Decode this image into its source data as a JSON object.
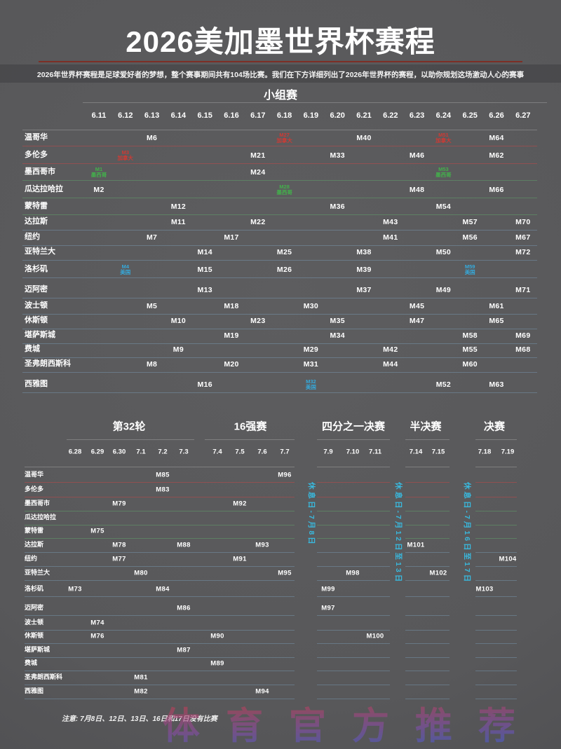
{
  "header": {
    "title": "2026美加墨世界杯赛程",
    "subtitle": "2026年世界杯赛程是足球爱好者的梦想，整个赛事期间共有104场比赛。我们在下方详细列出了2026年世界杯的赛程，以助你规划这场激动人心的赛事"
  },
  "colors": {
    "accent_rule": "#7d2e26",
    "canada": "#cf3a34",
    "mexico": "#43b14b",
    "usa": "#35aadc",
    "rest_label": "#39b9de"
  },
  "group_stage": {
    "title": "小组赛",
    "dates": [
      "6.11",
      "6.12",
      "6.13",
      "6.14",
      "6.15",
      "6.16",
      "6.17",
      "6.18",
      "6.19",
      "6.20",
      "6.21",
      "6.22",
      "6.23",
      "6.24",
      "6.25",
      "6.26",
      "6.27"
    ],
    "rows": [
      {
        "city": "温哥华",
        "country": "CA",
        "matches": [
          {
            "m": "M6",
            "date": "6.13"
          },
          {
            "m": "M27",
            "date": "6.18",
            "tag": "加拿大",
            "color": "canada"
          },
          {
            "m": "M40",
            "date": "6.21"
          },
          {
            "m": "M51",
            "date": "6.24",
            "tag": "加拿大",
            "color": "canada"
          },
          {
            "m": "M64",
            "date": "6.26"
          }
        ]
      },
      {
        "city": "多伦多",
        "country": "CA",
        "matches": [
          {
            "m": "M3",
            "date": "6.12",
            "tag": "加拿大",
            "color": "canada"
          },
          {
            "m": "M21",
            "date": "6.17"
          },
          {
            "m": "M33",
            "date": "6.20"
          },
          {
            "m": "M46",
            "date": "6.23"
          },
          {
            "m": "M62",
            "date": "6.26"
          }
        ]
      },
      {
        "city": "墨西哥市",
        "country": "MX",
        "matches": [
          {
            "m": "M1",
            "date": "6.11",
            "tag": "墨西哥",
            "color": "mexico"
          },
          {
            "m": "M24",
            "date": "6.17"
          },
          {
            "m": "M53",
            "date": "6.24",
            "tag": "墨西哥",
            "color": "mexico"
          }
        ]
      },
      {
        "city": "瓜达拉哈拉",
        "country": "MX",
        "matches": [
          {
            "m": "M2",
            "date": "6.11"
          },
          {
            "m": "M28",
            "date": "6.18",
            "tag": "墨西哥",
            "color": "mexico"
          },
          {
            "m": "M48",
            "date": "6.23"
          },
          {
            "m": "M66",
            "date": "6.26"
          }
        ]
      },
      {
        "city": "蒙特雷",
        "country": "MX",
        "matches": [
          {
            "m": "M12",
            "date": "6.14"
          },
          {
            "m": "M36",
            "date": "6.20"
          },
          {
            "m": "M54",
            "date": "6.24"
          }
        ]
      },
      {
        "city": "达拉斯",
        "country": "US",
        "matches": [
          {
            "m": "M11",
            "date": "6.14"
          },
          {
            "m": "M22",
            "date": "6.17"
          },
          {
            "m": "M43",
            "date": "6.22"
          },
          {
            "m": "M57",
            "date": "6.25"
          },
          {
            "m": "M70",
            "date": "6.27"
          }
        ]
      },
      {
        "city": "纽约",
        "country": "US",
        "matches": [
          {
            "m": "M7",
            "date": "6.13"
          },
          {
            "m": "M17",
            "date": "6.16"
          },
          {
            "m": "M41",
            "date": "6.22"
          },
          {
            "m": "M56",
            "date": "6.25"
          },
          {
            "m": "M67",
            "date": "6.27"
          }
        ]
      },
      {
        "city": "亚特兰大",
        "country": "US",
        "matches": [
          {
            "m": "M14",
            "date": "6.15"
          },
          {
            "m": "M25",
            "date": "6.18"
          },
          {
            "m": "M38",
            "date": "6.21"
          },
          {
            "m": "M50",
            "date": "6.24"
          },
          {
            "m": "M72",
            "date": "6.27"
          }
        ]
      },
      {
        "city": "洛杉矶",
        "country": "US",
        "matches": [
          {
            "m": "M4",
            "date": "6.12",
            "tag": "美国",
            "color": "usa"
          },
          {
            "m": "M15",
            "date": "6.15"
          },
          {
            "m": "M26",
            "date": "6.18"
          },
          {
            "m": "M39",
            "date": "6.21"
          },
          {
            "m": "M59",
            "date": "6.25",
            "tag": "美国",
            "color": "usa"
          }
        ]
      },
      {
        "city": "迈阿密",
        "country": "US",
        "matches": [
          {
            "m": "M13",
            "date": "6.15"
          },
          {
            "m": "M37",
            "date": "6.21"
          },
          {
            "m": "M49",
            "date": "6.24"
          },
          {
            "m": "M71",
            "date": "6.27"
          }
        ]
      },
      {
        "city": "波士顿",
        "country": "US",
        "matches": [
          {
            "m": "M5",
            "date": "6.13"
          },
          {
            "m": "M18",
            "date": "6.16"
          },
          {
            "m": "M30",
            "date": "6.19"
          },
          {
            "m": "M45",
            "date": "6.23"
          },
          {
            "m": "M61",
            "date": "6.26"
          }
        ]
      },
      {
        "city": "休斯顿",
        "country": "US",
        "matches": [
          {
            "m": "M10",
            "date": "6.14"
          },
          {
            "m": "M23",
            "date": "6.17"
          },
          {
            "m": "M35",
            "date": "6.20"
          },
          {
            "m": "M47",
            "date": "6.23"
          },
          {
            "m": "M65",
            "date": "6.26"
          }
        ]
      },
      {
        "city": "堪萨斯城",
        "country": "US",
        "matches": [
          {
            "m": "M19",
            "date": "6.16"
          },
          {
            "m": "M34",
            "date": "6.20"
          },
          {
            "m": "M58",
            "date": "6.25"
          },
          {
            "m": "M69",
            "date": "6.27"
          }
        ]
      },
      {
        "city": "费城",
        "country": "US",
        "matches": [
          {
            "m": "M9",
            "date": "6.14"
          },
          {
            "m": "M29",
            "date": "6.19"
          },
          {
            "m": "M42",
            "date": "6.22"
          },
          {
            "m": "M55",
            "date": "6.25"
          },
          {
            "m": "M68",
            "date": "6.27"
          }
        ]
      },
      {
        "city": "圣弗朗西斯科",
        "country": "US",
        "matches": [
          {
            "m": "M8",
            "date": "6.13"
          },
          {
            "m": "M20",
            "date": "6.16"
          },
          {
            "m": "M31",
            "date": "6.19"
          },
          {
            "m": "M44",
            "date": "6.22"
          },
          {
            "m": "M60",
            "date": "6.25"
          }
        ]
      },
      {
        "city": "西雅图",
        "country": "US",
        "matches": [
          {
            "m": "M16",
            "date": "6.15"
          },
          {
            "m": "M32",
            "date": "6.19",
            "tag": "美国",
            "color": "usa"
          },
          {
            "m": "M52",
            "date": "6.24"
          },
          {
            "m": "M63",
            "date": "6.26"
          }
        ]
      }
    ]
  },
  "knockout": {
    "sections": [
      {
        "title": "第32轮",
        "dates": [
          "6.28",
          "6.29",
          "6.30",
          "7.1",
          "7.2",
          "7.3"
        ]
      },
      {
        "title": "16强赛",
        "dates": [
          "7.4",
          "7.5",
          "7.6",
          "7.7"
        ]
      },
      {
        "title": "四分之一决赛",
        "dates": [
          "7.9",
          "7.10",
          "7.11"
        ]
      },
      {
        "title": "半决赛",
        "dates": [
          "7.14",
          "7.15"
        ]
      },
      {
        "title": "决赛",
        "dates": [
          "7.18",
          "7.19"
        ]
      }
    ],
    "rest_days": [
      "休息日-7月8日",
      "休息日-7月12日至13日",
      "休息日-7月16日至17日"
    ],
    "rows": [
      {
        "city": "温哥华",
        "country": "CA",
        "matches": [
          {
            "m": "M85",
            "date": "7.2"
          },
          {
            "m": "M96",
            "date": "7.7"
          }
        ]
      },
      {
        "city": "多伦多",
        "country": "CA",
        "matches": [
          {
            "m": "M83",
            "date": "7.2"
          }
        ]
      },
      {
        "city": "墨西哥市",
        "country": "MX",
        "matches": [
          {
            "m": "M79",
            "date": "6.30"
          },
          {
            "m": "M92",
            "date": "7.5"
          }
        ]
      },
      {
        "city": "瓜达拉哈拉",
        "country": "MX",
        "matches": []
      },
      {
        "city": "蒙特雷",
        "country": "MX",
        "matches": [
          {
            "m": "M75",
            "date": "6.29"
          }
        ]
      },
      {
        "city": "达拉斯",
        "country": "US",
        "matches": [
          {
            "m": "M78",
            "date": "6.30"
          },
          {
            "m": "M88",
            "date": "7.3"
          },
          {
            "m": "M93",
            "date": "7.6"
          },
          {
            "m": "M101",
            "date": "7.14"
          }
        ]
      },
      {
        "city": "纽约",
        "country": "US",
        "matches": [
          {
            "m": "M77",
            "date": "6.30"
          },
          {
            "m": "M91",
            "date": "7.5"
          },
          {
            "m": "M104",
            "date": "7.19"
          }
        ]
      },
      {
        "city": "亚特兰大",
        "country": "US",
        "matches": [
          {
            "m": "M80",
            "date": "7.1"
          },
          {
            "m": "M95",
            "date": "7.7"
          },
          {
            "m": "M98",
            "date": "7.10"
          },
          {
            "m": "M102",
            "date": "7.15"
          }
        ]
      },
      {
        "city": "洛杉矶",
        "country": "US",
        "matches": [
          {
            "m": "M73",
            "date": "6.28"
          },
          {
            "m": "M84",
            "date": "7.2"
          },
          {
            "m": "M99",
            "date": "7.9"
          },
          {
            "m": "M103",
            "date": "7.18"
          }
        ]
      },
      {
        "city": "迈阿密",
        "country": "US",
        "matches": [
          {
            "m": "M86",
            "date": "7.3"
          },
          {
            "m": "M97",
            "date": "7.9"
          }
        ]
      },
      {
        "city": "波士顿",
        "country": "US",
        "matches": [
          {
            "m": "M74",
            "date": "6.29"
          }
        ]
      },
      {
        "city": "休斯顿",
        "country": "US",
        "matches": [
          {
            "m": "M76",
            "date": "6.29"
          },
          {
            "m": "M90",
            "date": "7.4"
          },
          {
            "m": "M100",
            "date": "7.11"
          }
        ]
      },
      {
        "city": "堪萨斯城",
        "country": "US",
        "matches": [
          {
            "m": "M87",
            "date": "7.3"
          }
        ]
      },
      {
        "city": "费城",
        "country": "US",
        "matches": [
          {
            "m": "M89",
            "date": "7.4"
          }
        ]
      },
      {
        "city": "圣弗朗西斯科",
        "country": "US",
        "matches": [
          {
            "m": "M81",
            "date": "7.1"
          }
        ]
      },
      {
        "city": "西雅图",
        "country": "US",
        "matches": [
          {
            "m": "M82",
            "date": "7.1"
          },
          {
            "m": "M94",
            "date": "7.6"
          }
        ]
      }
    ]
  },
  "footer": {
    "note": "注意: 7月8日、12日、13日、16日和17日没有比赛",
    "watermark": "体育官方推荐"
  }
}
